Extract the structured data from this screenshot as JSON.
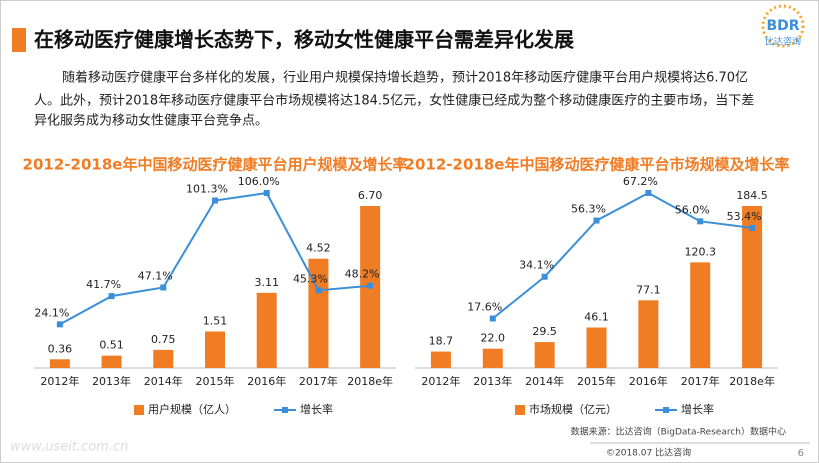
{
  "header": {
    "title": "在移动医疗健康增长态势下，移动女性健康平台需差异化发展",
    "logo": "BDR",
    "logo_sub": "比达咨询"
  },
  "paragraph": [
    "随着移动医疗健康平台多样化的发展，行业用户规模保持增长趋势，预计2018年移动医疗健康平台用户规模将达6.70亿",
    "人。此外，预计2018年移动医疗健康平台市场规模将达184.5亿元，女性健康已经成为整个移动健康医疗的主要市场，当下差",
    "异化服务成为移动女性健康平台竞争点。"
  ],
  "chart_data": [
    {
      "type": "bar+line",
      "title": "2012-2018e年中国移动医疗健康平台用户规模及增长率",
      "categories": [
        "2012年",
        "2013年",
        "2014年",
        "2015年",
        "2016年",
        "2017年",
        "2018e年"
      ],
      "series": [
        {
          "name": "用户规模（亿人）",
          "color": "#f07c24",
          "values": [
            0.36,
            0.51,
            0.75,
            1.51,
            3.11,
            4.52,
            6.7
          ],
          "value_labels": [
            "0.36",
            "0.51",
            "0.75",
            "1.51",
            "3.11",
            "4.52",
            "6.70"
          ]
        },
        {
          "name": "增长率",
          "color": "#3b8fd8",
          "axis": "y2",
          "values": [
            24.1,
            41.7,
            47.1,
            101.3,
            106.0,
            45.3,
            48.2
          ],
          "value_labels": [
            "24.1%",
            "41.7%",
            "47.1%",
            "101.3%",
            "106.0%",
            "45.3%",
            "48.2%"
          ]
        }
      ]
    },
    {
      "type": "bar+line",
      "title": "2012-2018e年中国移动医疗健康平台市场规模及增长率",
      "categories": [
        "2012年",
        "2013年",
        "2014年",
        "2015年",
        "2016年",
        "2017年",
        "2018e年"
      ],
      "series": [
        {
          "name": "市场规模（亿元）",
          "color": "#f07c24",
          "values": [
            18.7,
            22.0,
            29.5,
            46.1,
            77.1,
            120.3,
            184.5
          ],
          "value_labels": [
            "18.7",
            "22.0",
            "29.5",
            "46.1",
            "77.1",
            "120.3",
            "184.5"
          ]
        },
        {
          "name": "增长率",
          "color": "#3b8fd8",
          "axis": "y2",
          "values": [
            null,
            17.6,
            34.1,
            56.3,
            67.2,
            56.0,
            53.4
          ],
          "value_labels": [
            null,
            "17.6%",
            "34.1%",
            "56.3%",
            "67.2%",
            "56.0%",
            "53.4%"
          ]
        }
      ]
    }
  ],
  "footer": {
    "source": "数据来源：比达咨询（BigData-Research）数据中心",
    "copyright": "©2018.07  比达咨询",
    "page": "6",
    "watermark": "www.useit.com.cn"
  }
}
